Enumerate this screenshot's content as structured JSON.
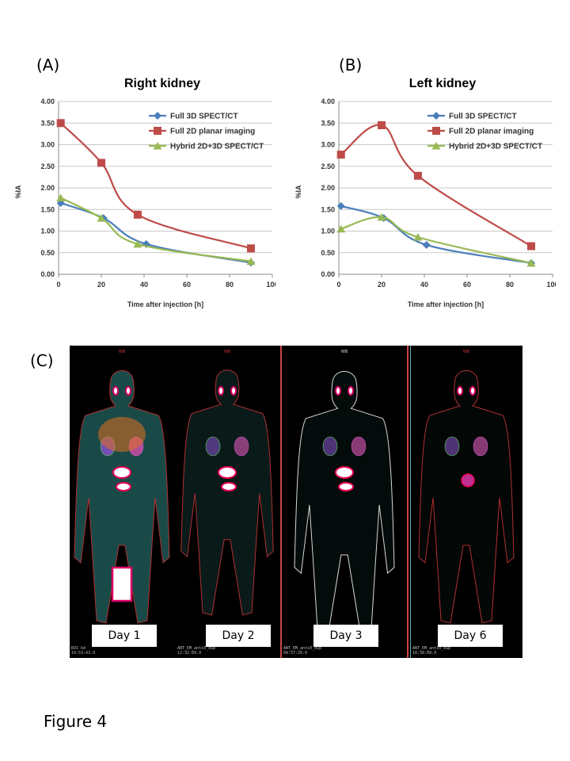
{
  "figure_caption": "Figure 4",
  "panels": {
    "a": "(A)",
    "b": "(B)",
    "c": "(C)"
  },
  "colors": {
    "blue": "#4a7ebb",
    "red": "#be4b48",
    "green": "#98b954",
    "grid": "#c8c8c8"
  },
  "chart_data": [
    {
      "type": "line",
      "title": "Right kidney",
      "xlabel": "Time after injection [h]",
      "ylabel": "%IA",
      "xlim": [
        0,
        100
      ],
      "ylim": [
        0,
        4
      ],
      "xticks": [
        "0",
        "20",
        "40",
        "60",
        "80",
        "100"
      ],
      "yticks": [
        "0.00",
        "0.50",
        "1.00",
        "1.50",
        "2.00",
        "2.50",
        "3.00",
        "3.50",
        "4.00"
      ],
      "grid": "horizontal",
      "legend": "top-right",
      "series": [
        {
          "name": "Full 3D SPECT/CT",
          "x": [
            1,
            21,
            41,
            90
          ],
          "y": [
            1.65,
            1.3,
            0.7,
            0.27
          ]
        },
        {
          "name": "Full 2D planar imaging",
          "x": [
            1,
            20,
            37,
            90
          ],
          "y": [
            3.5,
            2.58,
            1.38,
            0.6
          ]
        },
        {
          "name": "Hybrid 2D+3D SPECT/CT",
          "x": [
            1,
            20,
            37,
            90
          ],
          "y": [
            1.77,
            1.3,
            0.7,
            0.3
          ]
        }
      ]
    },
    {
      "type": "line",
      "title": "Left kidney",
      "xlabel": "Time after injection [h]",
      "ylabel": "%IA",
      "xlim": [
        0,
        100
      ],
      "ylim": [
        0,
        4
      ],
      "xticks": [
        "0",
        "20",
        "40",
        "60",
        "80",
        "100"
      ],
      "yticks": [
        "0.00",
        "0.50",
        "1.00",
        "1.50",
        "2.00",
        "2.50",
        "3.00",
        "3.50",
        "4.00"
      ],
      "grid": "horizontal",
      "legend": "top-right",
      "series": [
        {
          "name": "Full 3D SPECT/CT",
          "x": [
            1,
            21,
            41,
            90
          ],
          "y": [
            1.58,
            1.3,
            0.68,
            0.26
          ]
        },
        {
          "name": "Full 2D planar imaging",
          "x": [
            1,
            20,
            37,
            90
          ],
          "y": [
            2.77,
            3.45,
            2.28,
            0.65
          ]
        },
        {
          "name": "Hybrid 2D+3D SPECT/CT",
          "x": [
            1,
            20,
            37,
            90
          ],
          "y": [
            1.05,
            1.32,
            0.86,
            0.26
          ]
        }
      ]
    }
  ],
  "scans": [
    {
      "day": "Day 1",
      "header": "WB",
      "footer1": "ROI bd",
      "footer2": "14:53:43.0",
      "intensity": "full"
    },
    {
      "day": "Day 2",
      "header": "WB",
      "footer1": "ANT_EM_anti0_dup",
      "footer2": "12:32:09.0",
      "intensity": "medium"
    },
    {
      "day": "Day 3",
      "header": "WB",
      "footer1": "ANT_EM_anti0_dup",
      "footer2": "09:57:20.0",
      "intensity": "medium"
    },
    {
      "day": "Day 6",
      "header": "WB",
      "footer1": "ANT_EM_anti0_dup",
      "footer2": "10:38:08.0",
      "intensity": "low"
    }
  ]
}
